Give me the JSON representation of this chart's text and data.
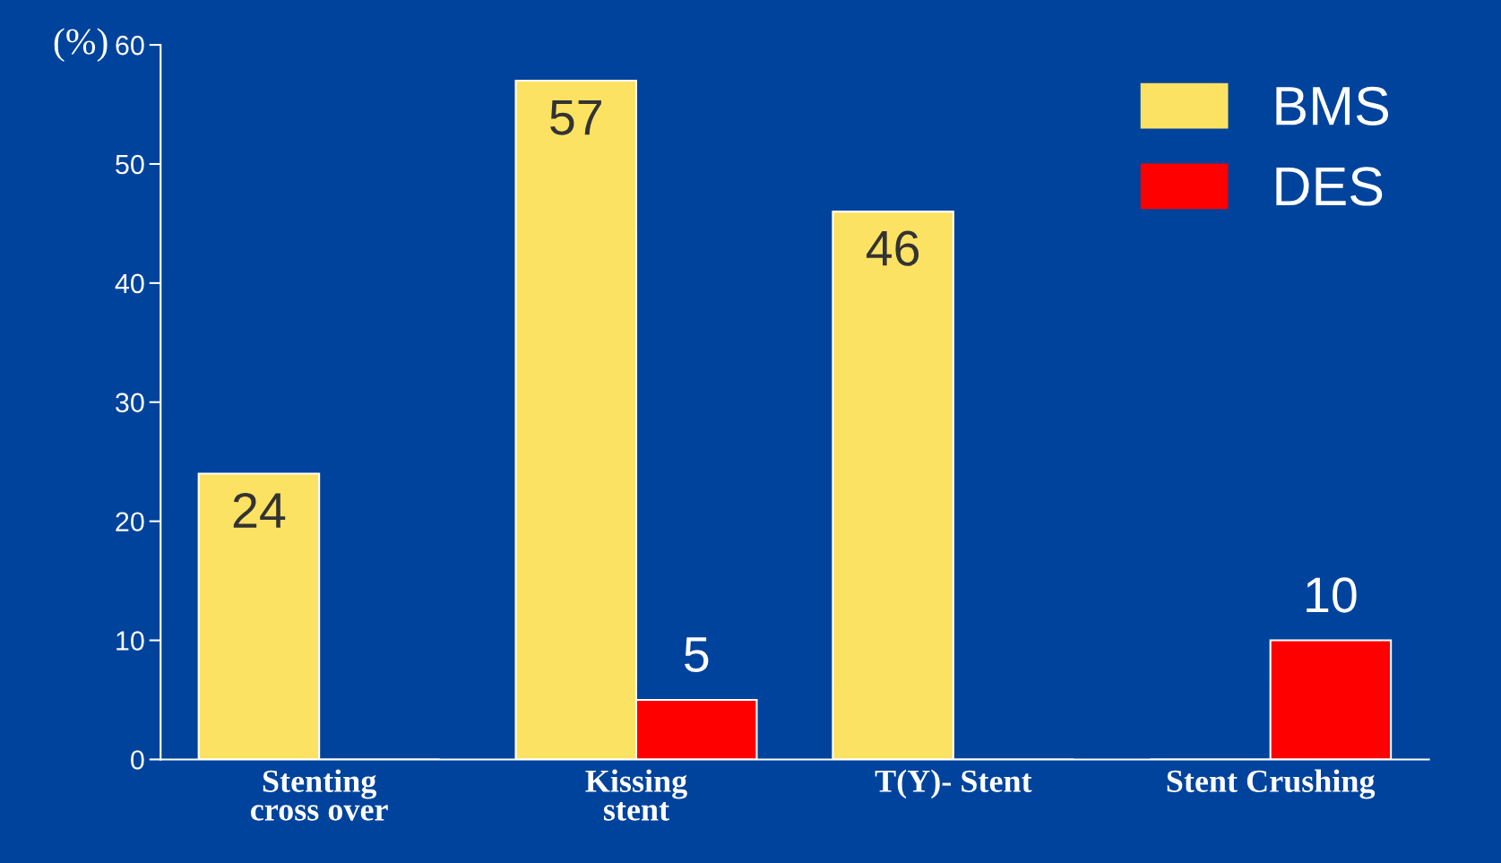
{
  "chart_data": {
    "type": "bar",
    "ylabel": "(%)",
    "categories": [
      "Stenting\ncross over",
      "Kissing\nstent",
      "T(Y)- Stent",
      "Stent Crushing"
    ],
    "series": [
      {
        "name": "BMS",
        "color": "#fce262",
        "values": [
          24,
          57,
          46,
          0
        ],
        "value_labels": [
          "24",
          "57",
          "46",
          null
        ]
      },
      {
        "name": "DES",
        "color": "#ff0000",
        "values": [
          0,
          5,
          0,
          10
        ],
        "value_labels": [
          null,
          "5",
          null,
          "10"
        ]
      }
    ],
    "ylim": [
      0,
      60
    ],
    "yticks": [
      0,
      10,
      20,
      30,
      40,
      50,
      60
    ],
    "grid": false,
    "legend": "top right"
  }
}
